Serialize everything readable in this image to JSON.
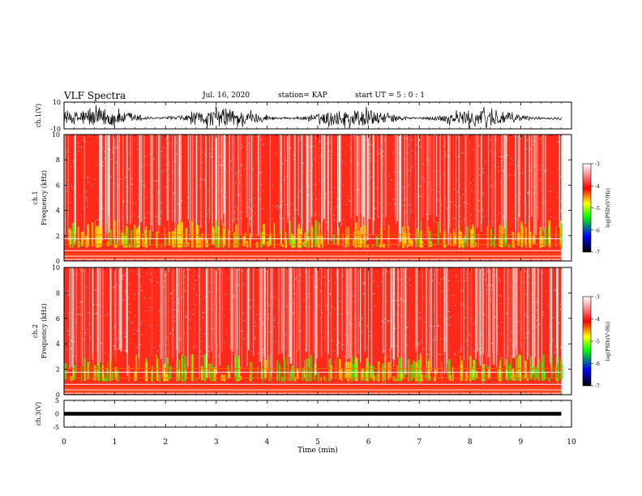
{
  "header": {
    "title": "VLF Spectra",
    "date": "Jul. 16, 2020",
    "station": "station= KAP",
    "start": "start UT = 5 : 0 : 1"
  },
  "colors": {
    "spectrogram_background": "#ff2a1a",
    "trace": "#000000",
    "colorbar": [
      "#000000",
      "#0000ff",
      "#00ff00",
      "#ffff00",
      "#ff0000",
      "#ffffff"
    ]
  },
  "chart_data": [
    {
      "type": "line",
      "name": "ch1-waveform",
      "ylabel": "ch.1(V)",
      "ylim": [
        -10,
        10
      ],
      "yticks": [
        "10",
        "-10"
      ],
      "xlim": [
        0,
        10
      ],
      "description_values": {
        "amplitude_min": -10,
        "amplitude_max": 10,
        "data_end_min": 9.8
      }
    },
    {
      "type": "heatmap",
      "name": "ch1-spectrogram",
      "ylabel": "ch.1\nFrequency (kHz)",
      "ylim": [
        0,
        10
      ],
      "yticks": [
        "0",
        "2",
        "4",
        "6",
        "8",
        "10"
      ],
      "xlim": [
        0,
        10
      ],
      "data_end_min": 9.8,
      "colorbar": {
        "label": "log(PSD)(V²/Hz)",
        "range": [
          -7,
          -3
        ],
        "ticks": [
          "-3",
          "-4",
          "-5",
          "-6",
          "-7"
        ]
      }
    },
    {
      "type": "heatmap",
      "name": "ch2-spectrogram",
      "ylabel": "ch.2\nFrequency (kHz)",
      "ylim": [
        0,
        10
      ],
      "yticks": [
        "0",
        "2",
        "4",
        "6",
        "8",
        "10"
      ],
      "xlim": [
        0,
        10
      ],
      "data_end_min": 9.8,
      "colorbar": {
        "label": "log(PSD)(V²/Hz)",
        "range": [
          -7,
          -3
        ],
        "ticks": [
          "-3",
          "-4",
          "-5",
          "-6",
          "-7"
        ]
      }
    },
    {
      "type": "line",
      "name": "ch3-waveform",
      "ylabel": "ch.3(V)",
      "ylim": [
        -5,
        5
      ],
      "yticks": [
        "5",
        "0",
        "-5"
      ],
      "xlim": [
        0,
        10
      ],
      "xlabel": "Time (min)",
      "xticks": [
        "0",
        "1",
        "2",
        "3",
        "4",
        "5",
        "6",
        "7",
        "8",
        "9",
        "10"
      ],
      "description_values": {
        "amplitude_min": -0.7,
        "amplitude_max": 0.7,
        "data_end_min": 9.8
      }
    }
  ]
}
